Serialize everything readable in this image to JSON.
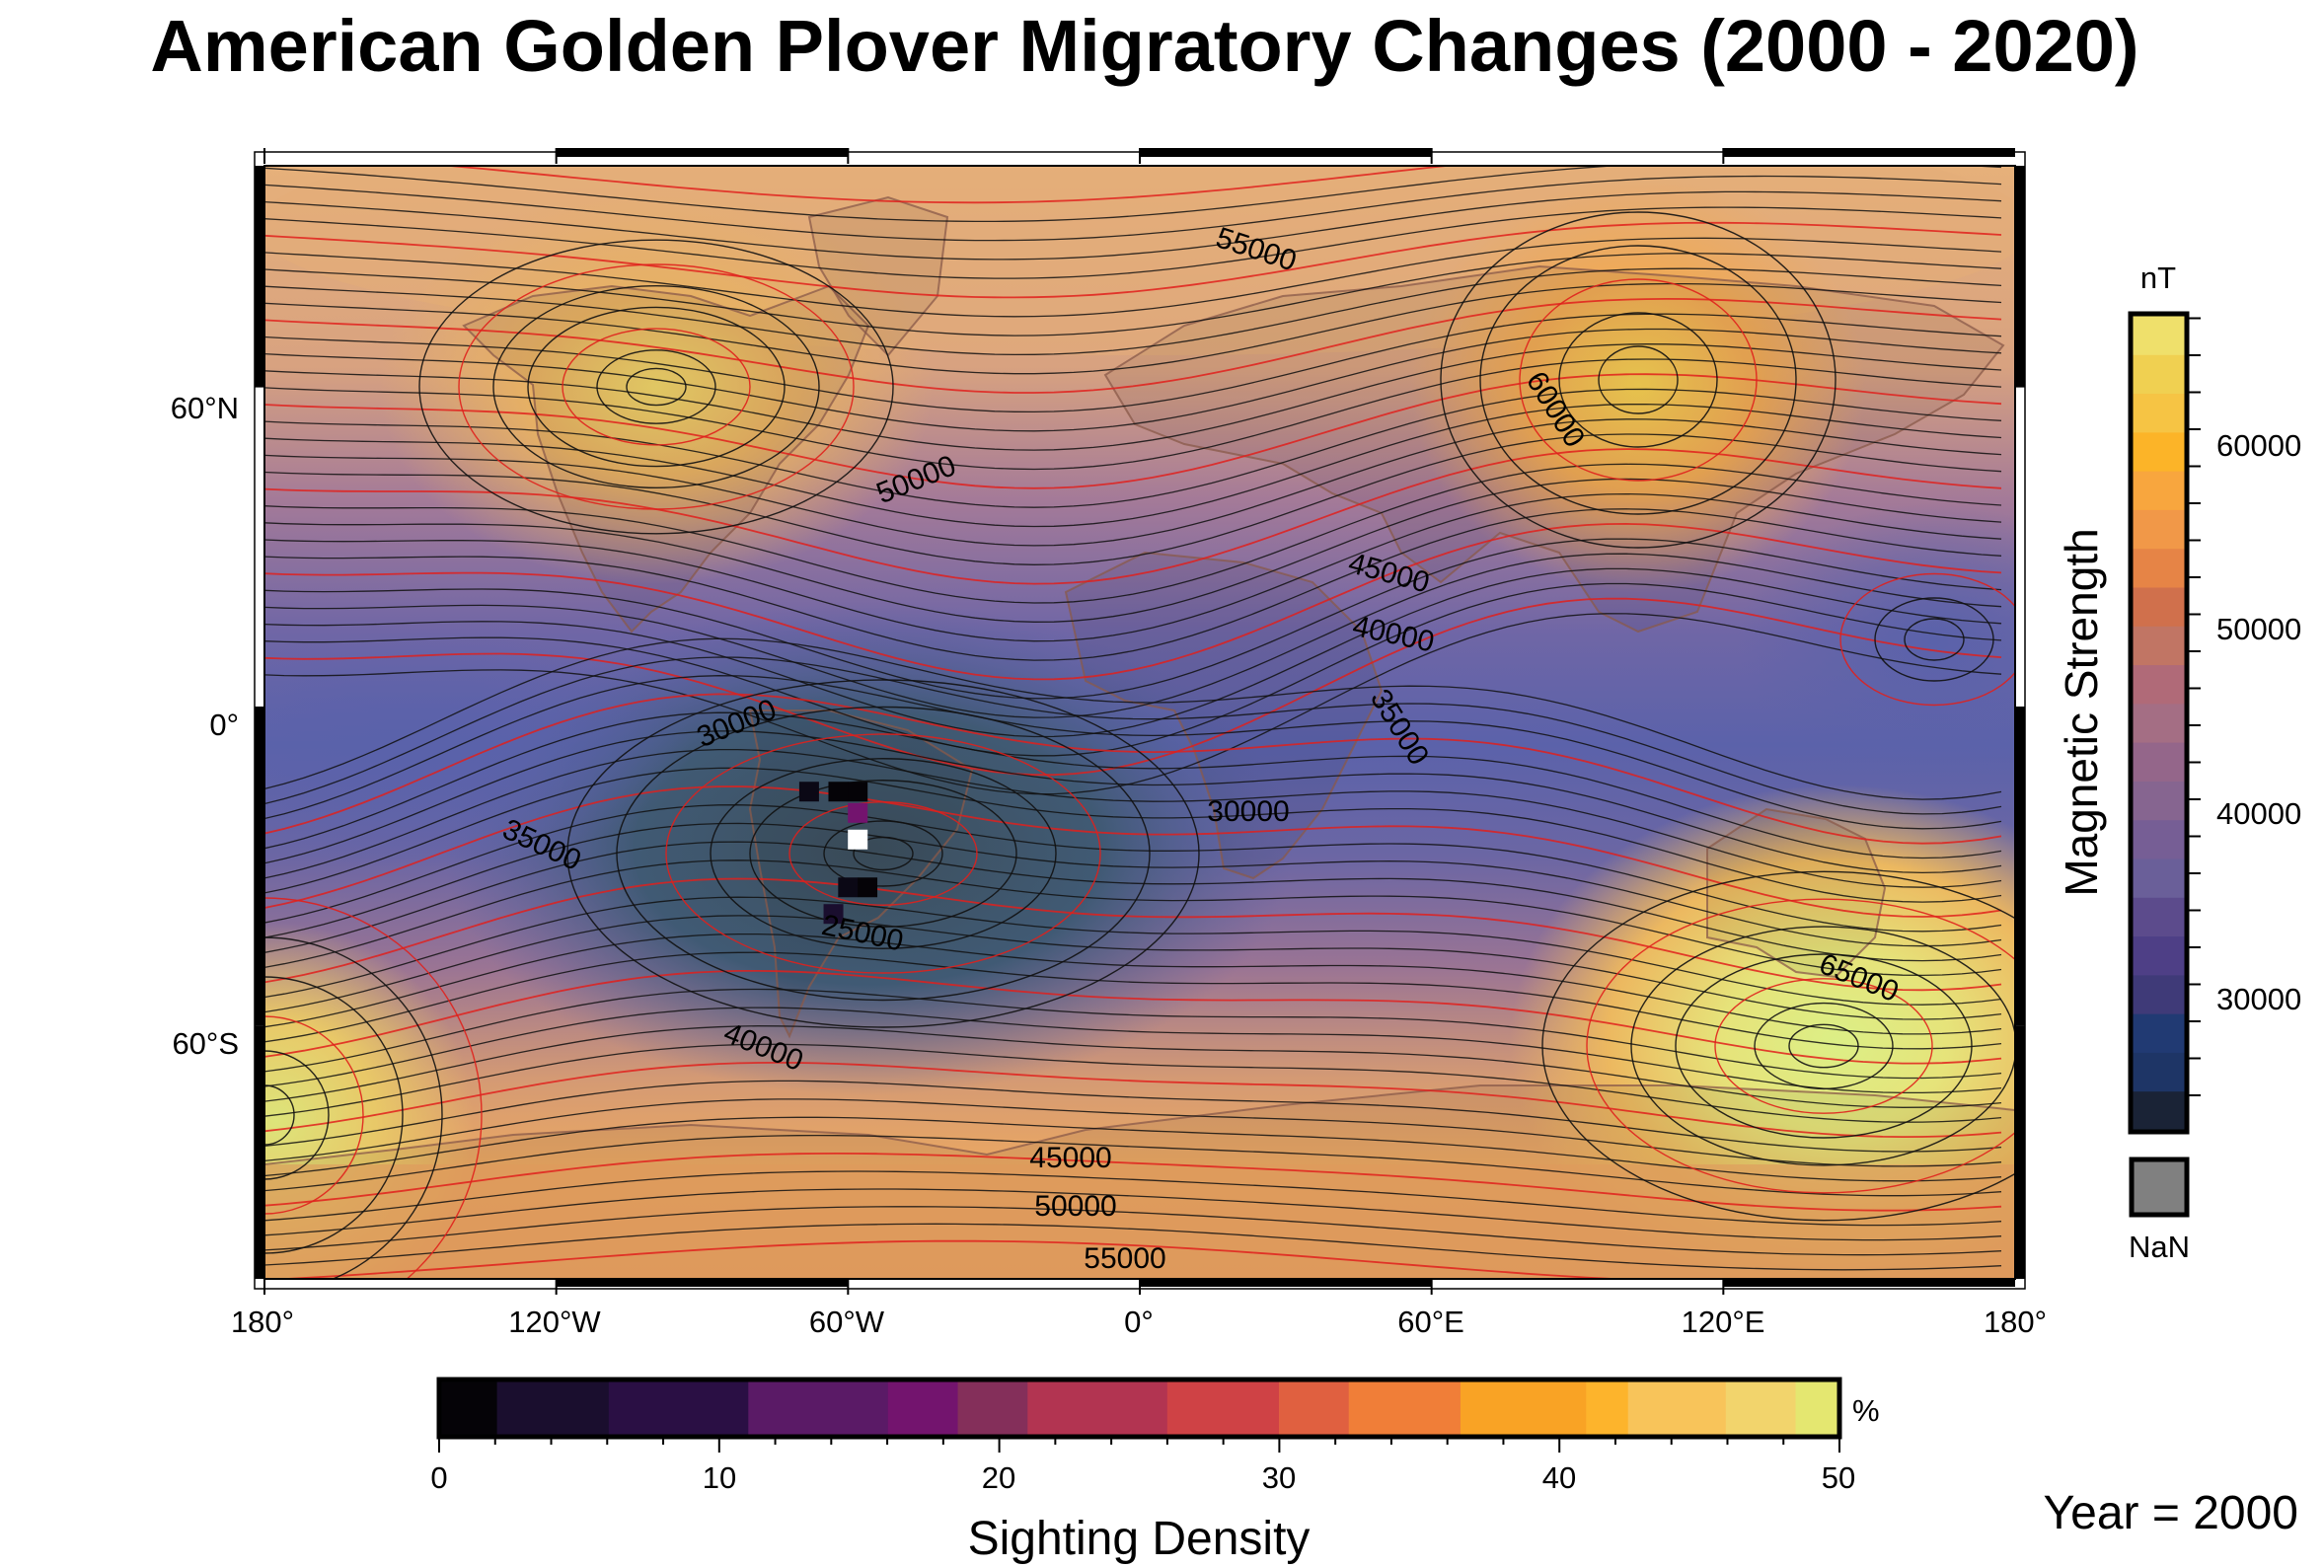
{
  "title": "American Golden Plover Migratory Changes (2000 - 2020)",
  "year_label": "Year = 2000",
  "map": {
    "projection": "equirectangular",
    "lon_labels": [
      "180°",
      "120°W",
      "60°W",
      "0°",
      "60°E",
      "120°E",
      "180°"
    ],
    "lat_labels": [
      "60°N",
      "0°",
      "60°S"
    ],
    "contour_labels": [
      {
        "text": "55000",
        "region": "north-atlantic"
      },
      {
        "text": "60000",
        "region": "siberia"
      },
      {
        "text": "50000",
        "region": "north-atlantic"
      },
      {
        "text": "45000",
        "region": "north-africa"
      },
      {
        "text": "40000",
        "region": "north-africa"
      },
      {
        "text": "35000",
        "region": "east-africa"
      },
      {
        "text": "30000",
        "region": "south-america"
      },
      {
        "text": "30000",
        "region": "south-africa"
      },
      {
        "text": "35000",
        "region": "south-pacific"
      },
      {
        "text": "25000",
        "region": "south-america"
      },
      {
        "text": "40000",
        "region": "south-atlantic"
      },
      {
        "text": "65000",
        "region": "south-of-australia"
      },
      {
        "text": "45000",
        "region": "antarctica"
      },
      {
        "text": "50000",
        "region": "antarctica"
      },
      {
        "text": "55000",
        "region": "antarctica"
      }
    ]
  },
  "magnetic_colorbar": {
    "title": "Magnetic Strength",
    "unit": "nT",
    "tick_labels": [
      "30000",
      "40000",
      "50000",
      "60000"
    ],
    "nan_label": "NaN",
    "colors": [
      "#1a2336",
      "#1e3566",
      "#213a73",
      "#3f3a78",
      "#4e3f86",
      "#5c4b8c",
      "#6a5f99",
      "#765e95",
      "#866590",
      "#94668a",
      "#a46e84",
      "#b06a78",
      "#c17564",
      "#d0704c",
      "#e68446",
      "#f19848",
      "#f8a63e",
      "#fcb428",
      "#f6c444",
      "#f0d051",
      "#efe06b"
    ]
  },
  "density_colorbar": {
    "title": "Sighting Density",
    "unit": "%",
    "tick_labels": [
      "0",
      "10",
      "20",
      "30",
      "40",
      "50"
    ],
    "colors": [
      "#050307",
      "#1a0e2e",
      "#2a0f44",
      "#5a1a66",
      "#73146e",
      "#842f5a",
      "#b23451",
      "#cf4245",
      "#e06040",
      "#f07e38",
      "#f9a325",
      "#fdb42c",
      "#f8c45a",
      "#f2d46c",
      "#e4e770",
      "#daf09e"
    ]
  },
  "sighting_cells": [
    {
      "lon": -68,
      "lat": -16,
      "color": "#0b0815"
    },
    {
      "lon": -62,
      "lat": -16,
      "color": "#050307"
    },
    {
      "lon": -58,
      "lat": -16,
      "color": "#050307"
    },
    {
      "lon": -58,
      "lat": -20,
      "color": "#73146e"
    },
    {
      "lon": -58,
      "lat": -25,
      "color": "#ffffff"
    },
    {
      "lon": -60,
      "lat": -34,
      "color": "#0b0815"
    },
    {
      "lon": -56,
      "lat": -34,
      "color": "#050307"
    },
    {
      "lon": -63,
      "lat": -39,
      "color": "#1a0e2e"
    }
  ]
}
